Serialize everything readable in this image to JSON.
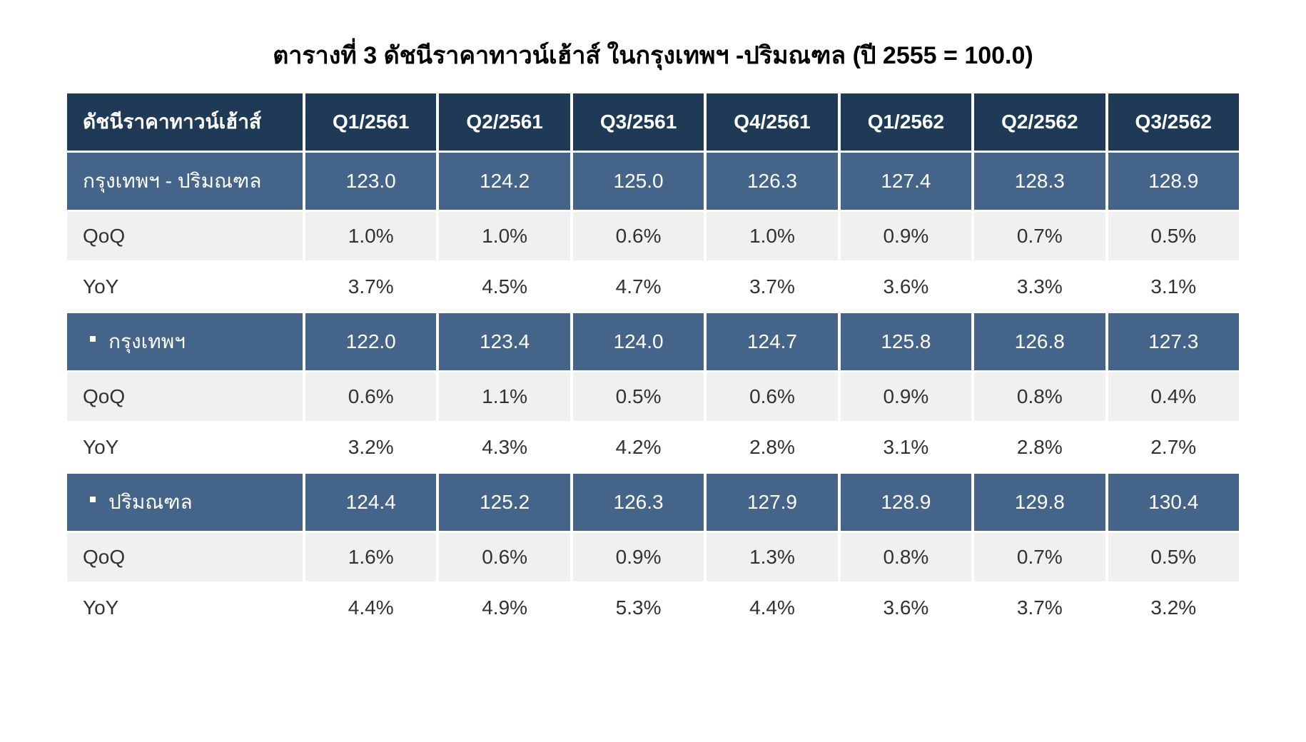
{
  "title": "ตารางที่ 3 ดัชนีราคาทาวน์เฮ้าส์ ในกรุงเทพฯ -ปริมณฑล (ปี 2555 = 100.0)",
  "table": {
    "type": "table",
    "colors": {
      "header_bg": "#1f3a56",
      "header_text": "#ffffff",
      "section_bg": "#44648a",
      "section_text": "#ffffff",
      "row_bg": "#f0f0f0",
      "row_alt_bg": "#ffffff",
      "row_text": "#323232",
      "background": "#ffffff"
    },
    "font_size": 28,
    "title_fontsize": 34,
    "columns": [
      "ดัชนีราคาทาวน์เฮ้าส์",
      "Q1/2561",
      "Q2/2561",
      "Q3/2561",
      "Q4/2561",
      "Q1/2562",
      "Q2/2562",
      "Q3/2562"
    ],
    "sections": [
      {
        "label": "กรุงเทพฯ - ปริมณฑล",
        "bullet": false,
        "values": [
          "123.0",
          "124.2",
          "125.0",
          "126.3",
          "127.4",
          "128.3",
          "128.9"
        ],
        "qoq": [
          "1.0%",
          "1.0%",
          "0.6%",
          "1.0%",
          "0.9%",
          "0.7%",
          "0.5%"
        ],
        "yoy": [
          "3.7%",
          "4.5%",
          "4.7%",
          "3.7%",
          "3.6%",
          "3.3%",
          "3.1%"
        ]
      },
      {
        "label": "กรุงเทพฯ",
        "bullet": true,
        "values": [
          "122.0",
          "123.4",
          "124.0",
          "124.7",
          "125.8",
          "126.8",
          "127.3"
        ],
        "qoq": [
          "0.6%",
          "1.1%",
          "0.5%",
          "0.6%",
          "0.9%",
          "0.8%",
          "0.4%"
        ],
        "yoy": [
          "3.2%",
          "4.3%",
          "4.2%",
          "2.8%",
          "3.1%",
          "2.8%",
          "2.7%"
        ]
      },
      {
        "label": "ปริมณฑล",
        "bullet": true,
        "values": [
          "124.4",
          "125.2",
          "126.3",
          "127.9",
          "128.9",
          "129.8",
          "130.4"
        ],
        "qoq": [
          "1.6%",
          "0.6%",
          "0.9%",
          "1.3%",
          "0.8%",
          "0.7%",
          "0.5%"
        ],
        "yoy": [
          "4.4%",
          "4.9%",
          "5.3%",
          "4.4%",
          "3.6%",
          "3.7%",
          "3.2%"
        ]
      }
    ],
    "row_labels": {
      "qoq": "QoQ",
      "yoy": "YoY"
    }
  }
}
